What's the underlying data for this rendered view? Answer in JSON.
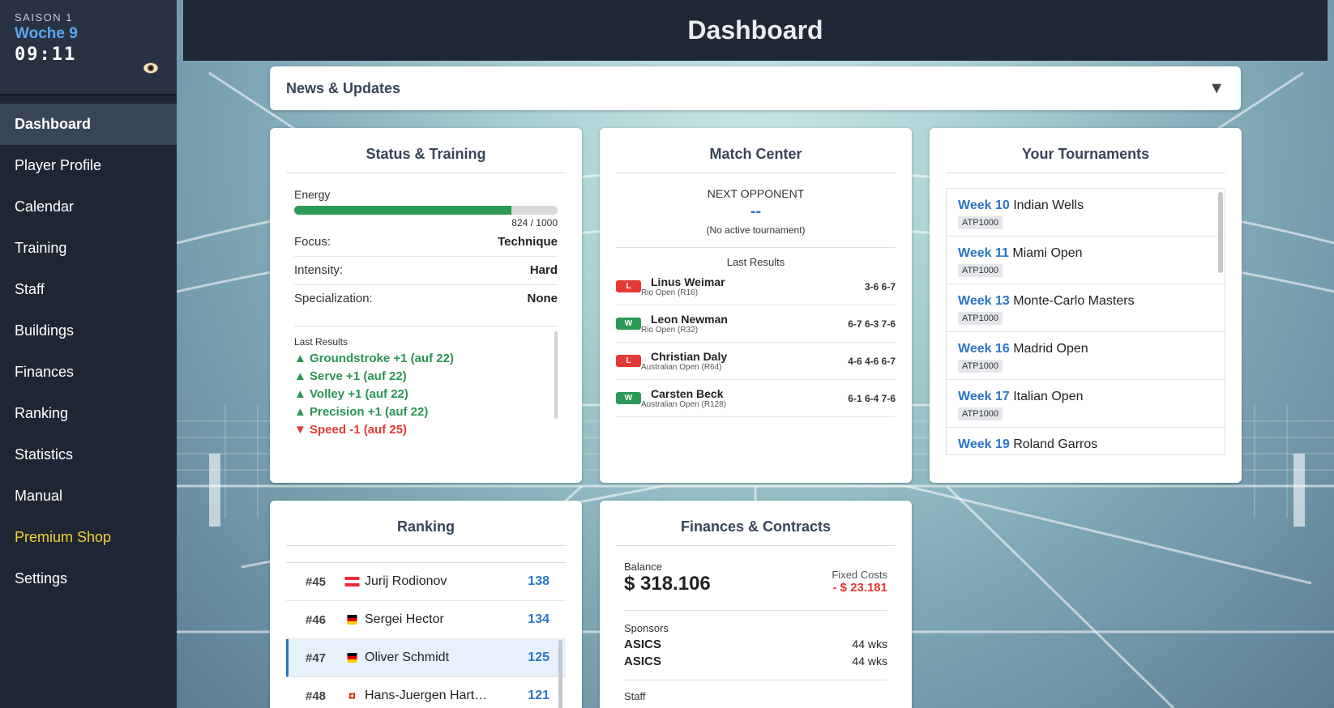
{
  "sidebar": {
    "season": "SAISON 1",
    "week": "Woche 9",
    "clock": "09:11",
    "nav": [
      "Dashboard",
      "Player Profile",
      "Calendar",
      "Training",
      "Staff",
      "Buildings",
      "Finances",
      "Ranking",
      "Statistics",
      "Manual",
      "Premium Shop",
      "Settings"
    ],
    "active": "Dashboard"
  },
  "header": {
    "title": "Dashboard"
  },
  "news": {
    "title": "News & Updates",
    "toggle": "▼"
  },
  "status": {
    "title": "Status & Training",
    "energy_label": "Energy",
    "energy_current": 824,
    "energy_max": 1000,
    "energy_text": "824 / 1000",
    "rows": [
      {
        "key": "Focus:",
        "value": "Technique"
      },
      {
        "key": "Intensity:",
        "value": "Hard"
      },
      {
        "key": "Specialization:",
        "value": "None"
      }
    ],
    "results_label": "Last Results",
    "results": [
      {
        "text": "Groundstroke +1 (auf 22)",
        "dir": "up"
      },
      {
        "text": "Serve +1 (auf 22)",
        "dir": "up"
      },
      {
        "text": "Volley +1 (auf 22)",
        "dir": "up"
      },
      {
        "text": "Precision +1 (auf 22)",
        "dir": "up"
      },
      {
        "text": "Speed -1 (auf 25)",
        "dir": "down"
      }
    ]
  },
  "match": {
    "title": "Match Center",
    "next_label": "NEXT OPPONENT",
    "next_name": "--",
    "next_note": "(No active tournament)",
    "results_label": "Last Results",
    "results": [
      {
        "result": "L",
        "name": "Linus Weimar",
        "tournament": "Rio Open (R16)",
        "score": "3-6 6-7"
      },
      {
        "result": "W",
        "name": "Leon Newman",
        "tournament": "Rio Open (R32)",
        "score": "6-7 6-3 7-6"
      },
      {
        "result": "L",
        "name": "Christian Daly",
        "tournament": "Australian Open (R64)",
        "score": "4-6 4-6 6-7"
      },
      {
        "result": "W",
        "name": "Carsten Beck",
        "tournament": "Australian Open (R128)",
        "score": "6-1 6-4 7-6"
      }
    ]
  },
  "tournaments": {
    "title": "Your Tournaments",
    "items": [
      {
        "week": "Week 10",
        "name": "Indian Wells",
        "tag": "ATP1000"
      },
      {
        "week": "Week 11",
        "name": "Miami Open",
        "tag": "ATP1000"
      },
      {
        "week": "Week 13",
        "name": "Monte-Carlo Masters",
        "tag": "ATP1000"
      },
      {
        "week": "Week 16",
        "name": "Madrid Open",
        "tag": "ATP1000"
      },
      {
        "week": "Week 17",
        "name": "Italian Open",
        "tag": "ATP1000"
      },
      {
        "week": "Week 19",
        "name": "Roland Garros",
        "tag": ""
      }
    ]
  },
  "ranking": {
    "title": "Ranking",
    "rows": [
      {
        "pos": "#45",
        "flag": "austria",
        "name": "Jurij Rodionov",
        "points": "138",
        "me": false
      },
      {
        "pos": "#46",
        "flag": "germany",
        "name": "Sergei Hector",
        "points": "134",
        "me": false
      },
      {
        "pos": "#47",
        "flag": "germany",
        "name": "Oliver Schmidt",
        "points": "125",
        "me": true
      },
      {
        "pos": "#48",
        "flag": "switzerland",
        "name": "Hans-Juergen Hart…",
        "points": "121",
        "me": false
      }
    ]
  },
  "finances": {
    "title": "Finances & Contracts",
    "balance_label": "Balance",
    "balance": "$ 318.106",
    "fixed_label": "Fixed Costs",
    "fixed": "- $ 23.181",
    "sponsors_label": "Sponsors",
    "sponsors": [
      {
        "name": "ASICS",
        "duration": "44 wks"
      },
      {
        "name": "ASICS",
        "duration": "44 wks"
      }
    ],
    "staff_label": "Staff"
  },
  "colors": {
    "accent": "#2c74c8",
    "positive": "#2c9a57",
    "negative": "#e53935",
    "premium": "#f2d130"
  }
}
